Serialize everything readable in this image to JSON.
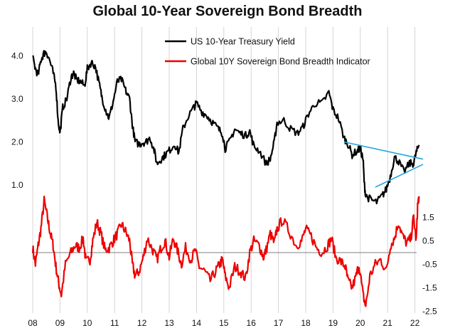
{
  "chart_data": {
    "type": "line",
    "title": "Global 10-Year Sovereign Bond Breadth",
    "x_tick_labels": [
      "08",
      "09",
      "10",
      "11",
      "12",
      "13",
      "14",
      "15",
      "16",
      "17",
      "18",
      "19",
      "20",
      "21",
      "22"
    ],
    "x_range": [
      2008.0,
      2022.3
    ],
    "left_axis": {
      "ticks": [
        "4.0",
        "3.0",
        "2.0",
        "1.0"
      ],
      "tick_values": [
        4.0,
        3.0,
        2.0,
        1.0
      ],
      "range": [
        0.4,
        4.45
      ]
    },
    "right_axis": {
      "ticks": [
        "1.5",
        "0.5",
        "-0.5",
        "-1.5",
        "-2.5"
      ],
      "tick_values": [
        1.5,
        0.5,
        -0.5,
        -1.5,
        -2.5
      ],
      "range": [
        -2.5,
        3.0
      ]
    },
    "grid": "vertical lines at each year",
    "legend": "top-center",
    "colors": {
      "us10y": "#000000",
      "breadth": "#ee0000",
      "trend": "#22aadd",
      "zero_line": "#999999",
      "grid": "#d4d4d4"
    },
    "series": [
      {
        "name": "US 10-Year Treasury Yield",
        "axis": "left",
        "x": [
          2008.0,
          2008.1,
          2008.2,
          2008.3,
          2008.4,
          2008.5,
          2008.62,
          2008.75,
          2008.85,
          2008.93,
          2009.0,
          2009.1,
          2009.25,
          2009.4,
          2009.5,
          2009.6,
          2009.75,
          2009.9,
          2010.0,
          2010.15,
          2010.3,
          2010.45,
          2010.55,
          2010.7,
          2010.8,
          2010.95,
          2011.1,
          2011.25,
          2011.4,
          2011.55,
          2011.65,
          2011.75,
          2011.9,
          2012.0,
          2012.15,
          2012.3,
          2012.45,
          2012.55,
          2012.7,
          2012.85,
          2013.0,
          2013.2,
          2013.35,
          2013.5,
          2013.7,
          2013.9,
          2014.0,
          2014.2,
          2014.4,
          2014.6,
          2014.8,
          2014.95,
          2015.05,
          2015.2,
          2015.4,
          2015.6,
          2015.8,
          2015.95,
          2016.1,
          2016.3,
          2016.55,
          2016.7,
          2016.85,
          2016.95,
          2017.2,
          2017.45,
          2017.7,
          2017.9,
          2018.1,
          2018.35,
          2018.6,
          2018.85,
          2019.0,
          2019.2,
          2019.4,
          2019.55,
          2019.7,
          2019.9,
          2020.0,
          2020.1,
          2020.15,
          2020.2,
          2020.4,
          2020.6,
          2020.8,
          2020.95,
          2021.1,
          2021.25,
          2021.4,
          2021.6,
          2021.8,
          2021.95,
          2022.05,
          2022.15
        ],
        "y": [
          3.95,
          3.7,
          3.55,
          3.9,
          4.05,
          4.1,
          3.9,
          3.6,
          3.3,
          2.5,
          2.2,
          2.8,
          3.0,
          3.5,
          3.6,
          3.45,
          3.4,
          3.3,
          3.7,
          3.85,
          3.75,
          3.3,
          3.0,
          2.7,
          2.55,
          2.95,
          3.4,
          3.45,
          3.2,
          3.0,
          2.4,
          2.0,
          1.95,
          1.98,
          2.0,
          2.1,
          1.8,
          1.5,
          1.6,
          1.7,
          1.8,
          1.95,
          1.75,
          2.3,
          2.6,
          2.8,
          2.9,
          2.7,
          2.6,
          2.45,
          2.3,
          2.2,
          1.85,
          2.0,
          2.3,
          2.2,
          2.15,
          2.25,
          1.9,
          1.8,
          1.5,
          1.6,
          2.0,
          2.45,
          2.5,
          2.3,
          2.2,
          2.35,
          2.65,
          2.9,
          2.9,
          3.15,
          2.75,
          2.55,
          2.1,
          1.95,
          1.7,
          1.8,
          1.85,
          1.6,
          1.0,
          0.75,
          0.65,
          0.6,
          0.75,
          0.9,
          1.2,
          1.65,
          1.55,
          1.3,
          1.5,
          1.5,
          1.75,
          1.93
        ]
      },
      {
        "name": "Global 10Y Sovereign Bond Breadth Indicator",
        "axis": "right",
        "x": [
          2008.0,
          2008.1,
          2008.2,
          2008.3,
          2008.42,
          2008.55,
          2008.65,
          2008.75,
          2008.85,
          2008.95,
          2009.05,
          2009.2,
          2009.4,
          2009.55,
          2009.7,
          2009.85,
          2009.95,
          2010.1,
          2010.2,
          2010.35,
          2010.5,
          2010.65,
          2010.8,
          2010.95,
          2011.1,
          2011.25,
          2011.4,
          2011.55,
          2011.65,
          2011.75,
          2011.9,
          2012.05,
          2012.2,
          2012.4,
          2012.55,
          2012.7,
          2012.85,
          2013.0,
          2013.15,
          2013.3,
          2013.45,
          2013.6,
          2013.8,
          2013.95,
          2014.1,
          2014.3,
          2014.5,
          2014.7,
          2014.85,
          2014.95,
          2015.05,
          2015.2,
          2015.4,
          2015.6,
          2015.8,
          2015.95,
          2016.1,
          2016.3,
          2016.45,
          2016.55,
          2016.7,
          2016.85,
          2016.95,
          2017.15,
          2017.4,
          2017.65,
          2017.85,
          2018.0,
          2018.2,
          2018.4,
          2018.6,
          2018.8,
          2018.95,
          2019.1,
          2019.3,
          2019.45,
          2019.55,
          2019.7,
          2019.85,
          2019.95,
          2020.1,
          2020.2,
          2020.35,
          2020.55,
          2020.75,
          2020.95,
          2021.1,
          2021.25,
          2021.4,
          2021.55,
          2021.7,
          2021.85,
          2021.95,
          2022.05,
          2022.1,
          2022.15
        ],
        "y": [
          0.2,
          -0.5,
          0.3,
          1.0,
          2.2,
          1.4,
          0.8,
          0.3,
          -0.6,
          -1.3,
          -1.8,
          -0.5,
          0.0,
          0.3,
          0.2,
          0.6,
          -0.4,
          -0.3,
          0.5,
          1.3,
          0.8,
          0.1,
          0.2,
          0.5,
          0.8,
          1.2,
          0.9,
          0.5,
          -0.5,
          -1.0,
          -0.8,
          -0.2,
          0.6,
          0.1,
          -0.3,
          0.2,
          0.5,
          -0.2,
          0.6,
          0.1,
          -0.5,
          0.2,
          -0.3,
          0.1,
          -0.6,
          -0.8,
          -1.2,
          -0.8,
          -0.5,
          -0.3,
          -1.0,
          -1.5,
          -0.6,
          -0.8,
          -1.1,
          0.0,
          0.5,
          0.3,
          -0.2,
          0.1,
          0.8,
          0.4,
          1.0,
          1.4,
          0.9,
          0.3,
          0.5,
          1.0,
          0.7,
          0.2,
          0.0,
          0.3,
          0.6,
          -0.2,
          -0.4,
          -0.6,
          -1.2,
          -1.5,
          -1.0,
          -0.5,
          -1.8,
          -2.3,
          -1.0,
          -0.5,
          -0.3,
          -0.8,
          0.3,
          0.6,
          1.3,
          0.7,
          0.4,
          0.6,
          1.5,
          0.5,
          2.0,
          2.4
        ]
      }
    ],
    "trend_lines": [
      {
        "axis": "left",
        "x": [
          2019.4,
          2022.3
        ],
        "y": [
          2.0,
          1.6
        ]
      },
      {
        "axis": "left",
        "x": [
          2020.55,
          2022.3
        ],
        "y": [
          0.95,
          1.48
        ]
      }
    ],
    "zero_line": {
      "axis": "right",
      "y": 0
    }
  }
}
